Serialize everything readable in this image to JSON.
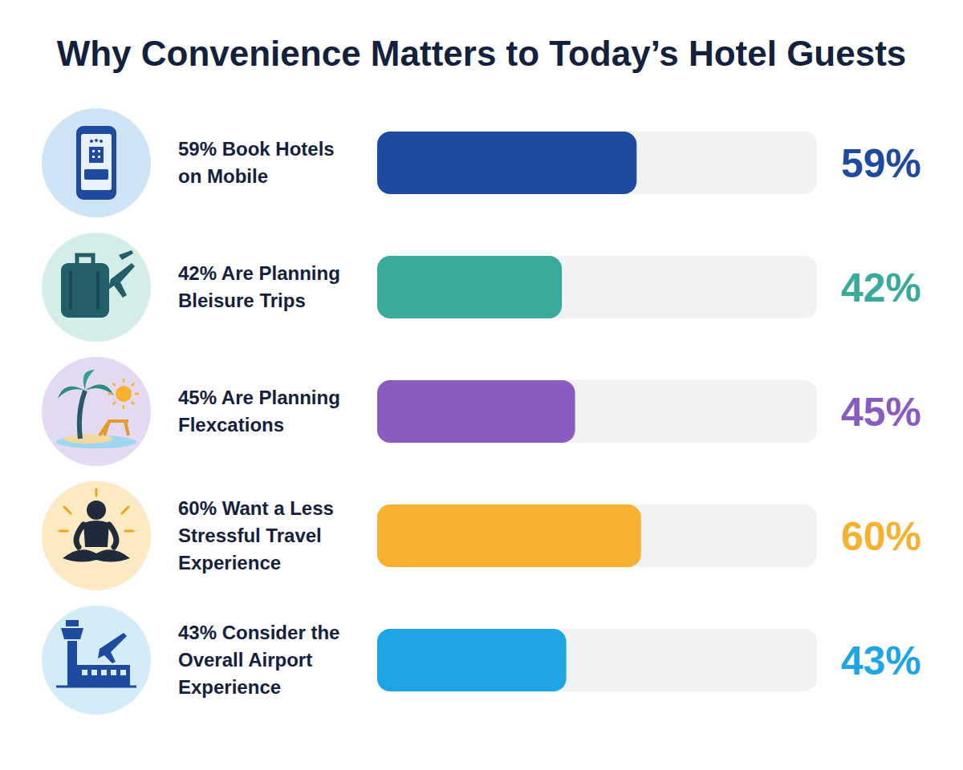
{
  "chart_data": {
    "type": "bar",
    "orientation": "horizontal",
    "title": "Why Convenience Matters to Today’s Hotel Guests",
    "categories": [
      "59% Book Hotels on Mobile",
      "42% Are Planning Bleisure Trips",
      "45% Are Planning Flexcations",
      "60% Want a Less Stressful Travel Experience",
      "43% Consider the Overall Airport Experience"
    ],
    "values": [
      59,
      42,
      45,
      60,
      43
    ],
    "value_labels": [
      "59%",
      "42%",
      "45%",
      "60%",
      "43%"
    ],
    "colors": [
      "#1e4aa0",
      "#3aaa9b",
      "#8a5cc0",
      "#f6b12f",
      "#1ea5e8"
    ],
    "xlim": [
      0,
      100
    ],
    "data_labels": true,
    "tick_labels": false,
    "grid": false
  }
}
